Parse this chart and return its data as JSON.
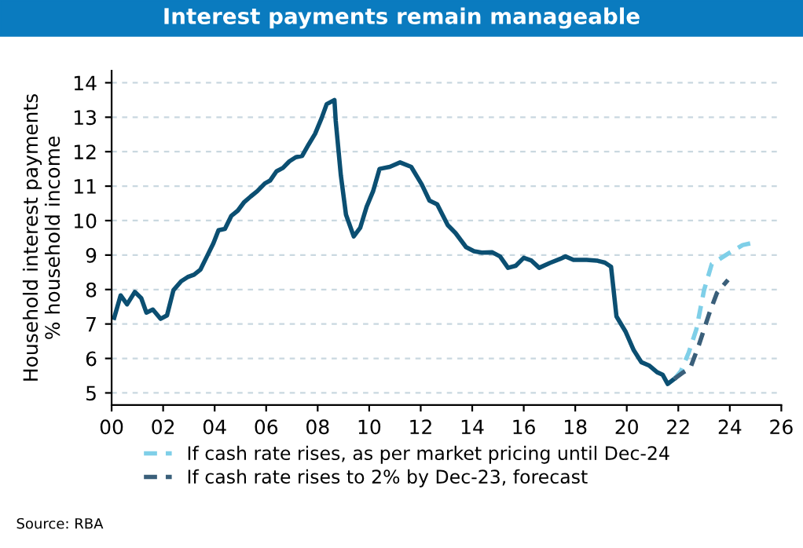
{
  "chart_data": {
    "type": "line",
    "title": "Interest payments remain manageable",
    "ylabel": "Household interest payments\n% household income",
    "annotations": [
      "Source: RBA"
    ],
    "xlim": [
      0,
      26
    ],
    "xticks": [
      {
        "value": 0,
        "label": "00"
      },
      {
        "value": 2,
        "label": "02"
      },
      {
        "value": 4,
        "label": "04"
      },
      {
        "value": 6,
        "label": "06"
      },
      {
        "value": 8,
        "label": "08"
      },
      {
        "value": 10,
        "label": "10"
      },
      {
        "value": 12,
        "label": "12"
      },
      {
        "value": 14,
        "label": "14"
      },
      {
        "value": 16,
        "label": "16"
      },
      {
        "value": 18,
        "label": "18"
      },
      {
        "value": 20,
        "label": "20"
      },
      {
        "value": 22,
        "label": "22"
      },
      {
        "value": 24,
        "label": "24"
      },
      {
        "value": 26,
        "label": "26"
      }
    ],
    "ylim": [
      4.65,
      14.35
    ],
    "yticks": [
      5,
      6,
      7,
      8,
      9,
      10,
      11,
      12,
      13,
      14
    ],
    "grid": "y",
    "legend": "bottom",
    "series": [
      {
        "color": "#0b4f72",
        "line_style": "solid",
        "x": [
          0.1,
          0.35,
          0.6,
          0.9,
          1.15,
          1.35,
          1.6,
          1.9,
          2.15,
          2.4,
          2.7,
          2.95,
          3.2,
          3.45,
          3.7,
          3.95,
          4.15,
          4.4,
          4.65,
          4.9,
          5.15,
          5.4,
          5.65,
          5.95,
          6.15,
          6.4,
          6.65,
          6.9,
          7.15,
          7.4,
          7.65,
          7.9,
          8.15,
          8.35,
          8.65,
          8.7,
          8.9,
          9.1,
          9.4,
          9.65,
          9.9,
          10.15,
          10.4,
          10.8,
          11.2,
          11.63,
          12.04,
          12.34,
          12.64,
          13.05,
          13.35,
          13.76,
          14.07,
          14.37,
          14.78,
          15.08,
          15.39,
          15.69,
          16.0,
          16.3,
          16.6,
          17.01,
          17.42,
          17.62,
          17.93,
          18.44,
          18.84,
          19.15,
          19.39,
          19.6,
          19.96,
          20.27,
          20.57,
          20.88,
          21.18,
          21.39,
          21.59,
          21.85
        ],
        "values": [
          7.18,
          7.83,
          7.57,
          7.93,
          7.75,
          7.33,
          7.42,
          7.15,
          7.25,
          7.98,
          8.24,
          8.36,
          8.43,
          8.58,
          8.96,
          9.34,
          9.72,
          9.76,
          10.14,
          10.29,
          10.54,
          10.7,
          10.85,
          11.08,
          11.16,
          11.43,
          11.53,
          11.72,
          11.84,
          11.88,
          12.21,
          12.52,
          12.97,
          13.38,
          13.5,
          12.9,
          11.31,
          10.17,
          9.54,
          9.79,
          10.4,
          10.85,
          11.5,
          11.56,
          11.69,
          11.56,
          11.05,
          10.58,
          10.47,
          9.87,
          9.64,
          9.23,
          9.11,
          9.07,
          9.08,
          8.96,
          8.63,
          8.69,
          8.92,
          8.84,
          8.63,
          8.77,
          8.89,
          8.96,
          8.86,
          8.86,
          8.84,
          8.78,
          8.66,
          7.22,
          6.77,
          6.24,
          5.89,
          5.79,
          5.6,
          5.53,
          5.26,
          5.41
        ]
      },
      {
        "name": "If cash rate rises, as per market pricing until Dec-24",
        "color": "#7fcfe8",
        "line_style": "dashed",
        "x": [
          21.85,
          22.1,
          22.4,
          22.7,
          23.0,
          23.3,
          23.93,
          24.5,
          24.8
        ],
        "values": [
          5.41,
          5.63,
          6.16,
          6.84,
          7.98,
          8.74,
          9.04,
          9.29,
          9.34
        ]
      },
      {
        "name": "If cash rate rises to 2% by Dec-23, forecast",
        "color": "#3a5f7a",
        "line_style": "dashed",
        "x": [
          21.85,
          22.2,
          22.46,
          22.8,
          23.2,
          23.5,
          23.93
        ],
        "values": [
          5.41,
          5.6,
          5.71,
          6.39,
          7.3,
          7.9,
          8.28
        ]
      }
    ]
  }
}
